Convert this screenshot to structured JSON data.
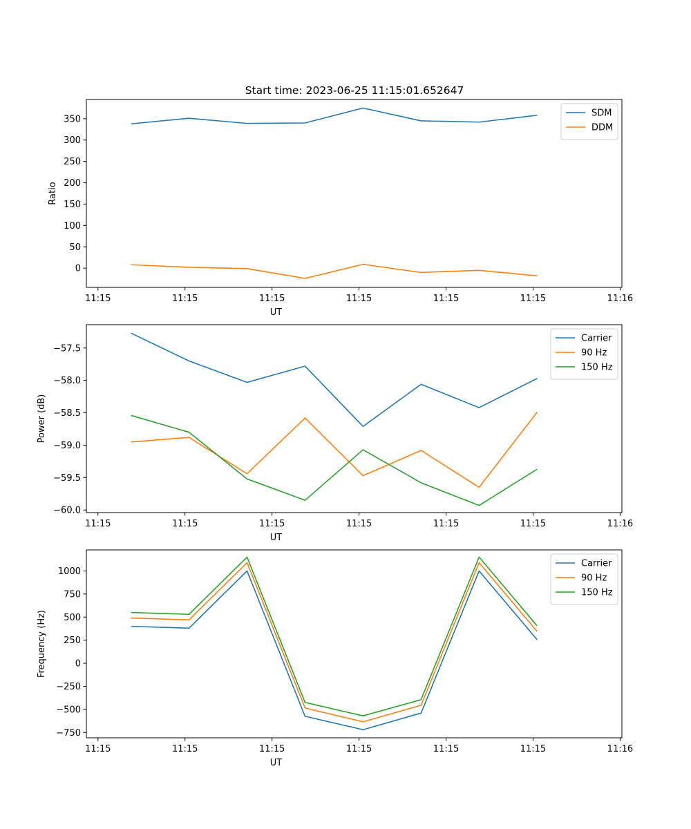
{
  "title": "Start time: 2023-06-25 11:15:01.652647",
  "chart_data": [
    {
      "type": "line",
      "title": "Start time: 2023-06-25 11:15:01.652647",
      "xlabel": "UT",
      "ylabel": "Ratio",
      "x_tick_labels": [
        "11:15",
        "11:15",
        "11:15",
        "11:15",
        "11:15",
        "11:15",
        "11:16"
      ],
      "xlim": [
        0,
        60
      ],
      "ylim": [
        -45,
        395
      ],
      "y_ticks": [
        0,
        50,
        100,
        150,
        200,
        250,
        300,
        350
      ],
      "y_tick_labels": [
        "0",
        "50",
        "100",
        "150",
        "200",
        "250",
        "300",
        "350"
      ],
      "legend": "top-right",
      "grid": false,
      "x": [
        5,
        11.5,
        18,
        24.5,
        31,
        37.5,
        44,
        50.5
      ],
      "series": [
        {
          "name": "SDM",
          "color": "#1f77b4",
          "values": [
            338,
            351,
            339,
            340,
            375,
            345,
            342,
            358
          ]
        },
        {
          "name": "DDM",
          "color": "#ff7f0e",
          "values": [
            8,
            2,
            -1,
            -24,
            9,
            -10,
            -5,
            -18
          ]
        }
      ]
    },
    {
      "type": "line",
      "xlabel": "UT",
      "ylabel": "Power (dB)",
      "x_tick_labels": [
        "11:15",
        "11:15",
        "11:15",
        "11:15",
        "11:15",
        "11:15",
        "11:16"
      ],
      "xlim": [
        0,
        60
      ],
      "ylim": [
        -60.04,
        -57.14
      ],
      "y_ticks": [
        -60.0,
        -59.5,
        -59.0,
        -58.5,
        -58.0,
        -57.5
      ],
      "y_tick_labels": [
        "−60.0",
        "−59.5",
        "−59.0",
        "−58.5",
        "−58.0",
        "−57.5"
      ],
      "legend": "top-right",
      "grid": false,
      "x": [
        5,
        11.5,
        18,
        24.5,
        31,
        37.5,
        44,
        50.5
      ],
      "series": [
        {
          "name": "Carrier",
          "color": "#1f77b4",
          "values": [
            -57.27,
            -57.7,
            -58.03,
            -57.78,
            -58.71,
            -58.06,
            -58.42,
            -57.97
          ]
        },
        {
          "name": "90 Hz",
          "color": "#ff7f0e",
          "values": [
            -58.95,
            -58.88,
            -59.44,
            -58.58,
            -59.47,
            -59.08,
            -59.65,
            -58.49
          ]
        },
        {
          "name": "150 Hz",
          "color": "#2ca02c",
          "values": [
            -58.54,
            -58.8,
            -59.52,
            -59.85,
            -59.07,
            -59.58,
            -59.93,
            -59.37
          ]
        }
      ]
    },
    {
      "type": "line",
      "xlabel": "UT",
      "ylabel": "Frequency (Hz)",
      "x_tick_labels": [
        "11:15",
        "11:15",
        "11:15",
        "11:15",
        "11:15",
        "11:15",
        "11:16"
      ],
      "xlim": [
        0,
        60
      ],
      "ylim": [
        -808,
        1228
      ],
      "y_ticks": [
        -750,
        -500,
        -250,
        0,
        250,
        500,
        750,
        1000
      ],
      "y_tick_labels": [
        "−750",
        "−500",
        "−250",
        "0",
        "250",
        "500",
        "750",
        "1000"
      ],
      "legend": "top-right",
      "grid": false,
      "x": [
        5,
        11.5,
        18,
        24.5,
        31,
        37.5,
        44,
        50.5
      ],
      "series": [
        {
          "name": "Carrier",
          "color": "#1f77b4",
          "values": [
            400,
            380,
            1000,
            -575,
            -720,
            -540,
            1000,
            255
          ]
        },
        {
          "name": "90 Hz",
          "color": "#ff7f0e",
          "values": [
            490,
            470,
            1090,
            -485,
            -635,
            -455,
            1090,
            345
          ]
        },
        {
          "name": "150 Hz",
          "color": "#2ca02c",
          "values": [
            550,
            530,
            1150,
            -425,
            -570,
            -395,
            1150,
            405
          ]
        }
      ]
    }
  ]
}
